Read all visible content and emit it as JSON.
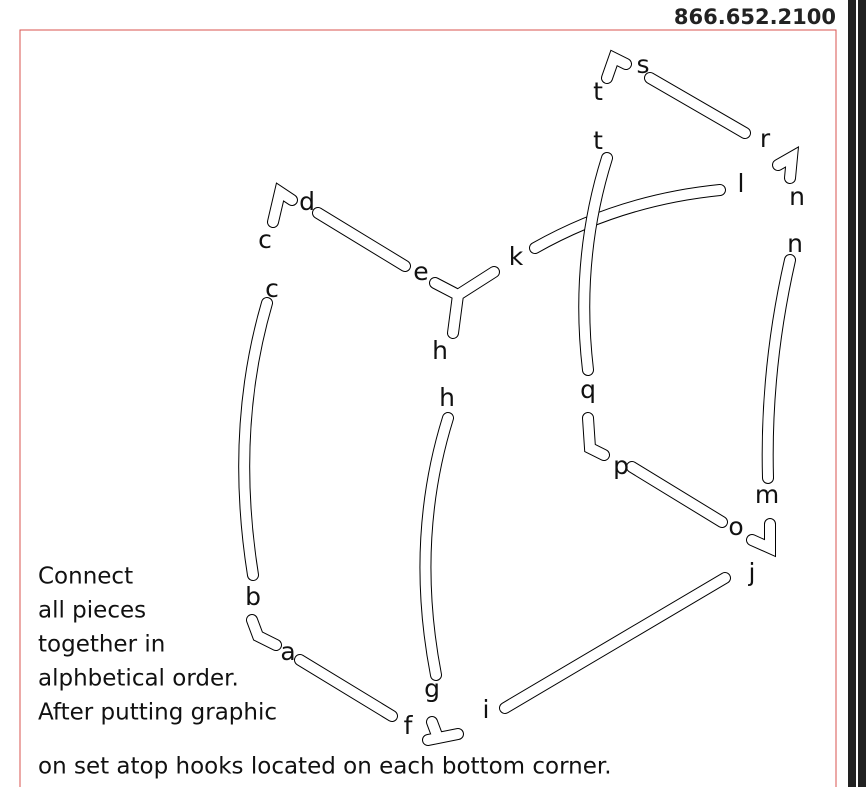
{
  "header": {
    "phone": "866.652.2100"
  },
  "labels": [
    "t",
    "s",
    "r",
    "n",
    "t",
    "l",
    "d",
    "c",
    "k",
    "e",
    "n",
    "h",
    "c",
    "q",
    "h",
    "p",
    "m",
    "o",
    "j",
    "b",
    "a",
    "g",
    "f",
    "i"
  ],
  "instructions": [
    "Connect",
    "all pieces",
    "together in",
    "alphbetical order.",
    "After putting graphic",
    "on set atop hooks located on each bottom corner."
  ]
}
